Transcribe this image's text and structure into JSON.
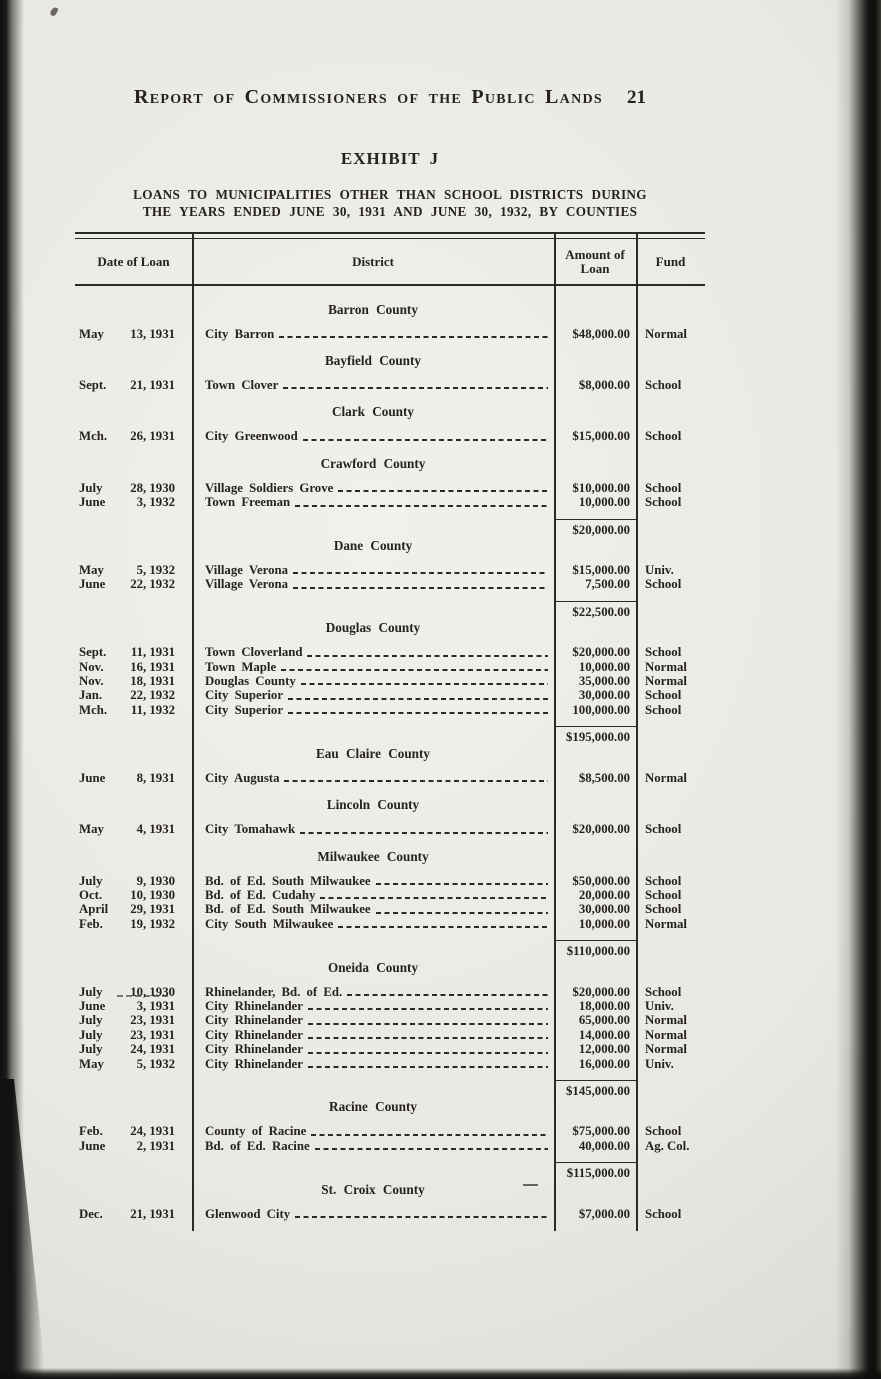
{
  "page": {
    "header_title": "Report of Commissioners of the Public Lands",
    "page_number": "21",
    "exhibit_title": "EXHIBIT J",
    "subtitle_line1": "LOANS TO MUNICIPALITIES OTHER THAN SCHOOL DISTRICTS DURING",
    "subtitle_line2": "THE YEARS ENDED JUNE 30, 1931 AND JUNE 30, 1932, BY COUNTIES"
  },
  "table": {
    "columns": [
      "Date of Loan",
      "District",
      "Amount of Loan",
      "Fund"
    ],
    "sections": [
      {
        "county": "Barron County",
        "rows": [
          {
            "month": "May",
            "day_year": "13, 1931",
            "district": "City Barron",
            "amount": "$48,000.00",
            "fund": "Normal"
          }
        ],
        "subtotal": null
      },
      {
        "county": "Bayfield County",
        "rows": [
          {
            "month": "Sept.",
            "day_year": "21, 1931",
            "district": "Town Clover",
            "amount": "$8,000.00",
            "fund": "School"
          }
        ],
        "subtotal": null
      },
      {
        "county": "Clark County",
        "rows": [
          {
            "month": "Mch.",
            "day_year": "26, 1931",
            "district": "City Greenwood",
            "amount": "$15,000.00",
            "fund": "School"
          }
        ],
        "subtotal": null
      },
      {
        "county": "Crawford County",
        "rows": [
          {
            "month": "July",
            "day_year": "28, 1930",
            "district": "Village Soldiers Grove",
            "amount": "$10,000.00",
            "fund": "School"
          },
          {
            "month": "June",
            "day_year": "3, 1932",
            "district": "Town Freeman",
            "amount": "10,000.00",
            "fund": "School"
          }
        ],
        "subtotal": "$20,000.00"
      },
      {
        "county": "Dane County",
        "rows": [
          {
            "month": "May",
            "day_year": "5, 1932",
            "district": "Village Verona",
            "amount": "$15,000.00",
            "fund": "Univ."
          },
          {
            "month": "June",
            "day_year": "22, 1932",
            "district": "Village Verona",
            "amount": "7,500.00",
            "fund": "School"
          }
        ],
        "subtotal": "$22,500.00"
      },
      {
        "county": "Douglas County",
        "rows": [
          {
            "month": "Sept.",
            "day_year": "11, 1931",
            "district": "Town Cloverland",
            "amount": "$20,000.00",
            "fund": "School"
          },
          {
            "month": "Nov.",
            "day_year": "16, 1931",
            "district": "Town Maple",
            "amount": "10,000.00",
            "fund": "Normal"
          },
          {
            "month": "Nov.",
            "day_year": "18, 1931",
            "district": "Douglas County",
            "amount": "35,000.00",
            "fund": "Normal"
          },
          {
            "month": "Jan.",
            "day_year": "22, 1932",
            "district": "City Superior",
            "amount": "30,000.00",
            "fund": "School"
          },
          {
            "month": "Mch.",
            "day_year": "11, 1932",
            "district": "City Superior",
            "amount": "100,000.00",
            "fund": "School"
          }
        ],
        "subtotal": "$195,000.00"
      },
      {
        "county": "Eau Claire County",
        "rows": [
          {
            "month": "June",
            "day_year": "8, 1931",
            "district": "City Augusta",
            "amount": "$8,500.00",
            "fund": "Normal"
          }
        ],
        "subtotal": null
      },
      {
        "county": "Lincoln County",
        "rows": [
          {
            "month": "May",
            "day_year": "4, 1931",
            "district": "City Tomahawk",
            "amount": "$20,000.00",
            "fund": "School"
          }
        ],
        "subtotal": null
      },
      {
        "county": "Milwaukee County",
        "rows": [
          {
            "month": "July",
            "day_year": "9, 1930",
            "district": "Bd. of Ed. South Milwaukee",
            "amount": "$50,000.00",
            "fund": "School"
          },
          {
            "month": "Oct.",
            "day_year": "10, 1930",
            "district": "Bd. of Ed. Cudahy",
            "amount": "20,000.00",
            "fund": "School"
          },
          {
            "month": "April",
            "day_year": "29, 1931",
            "district": "Bd. of Ed. South Milwaukee",
            "amount": "30,000.00",
            "fund": "School"
          },
          {
            "month": "Feb.",
            "day_year": "19, 1932",
            "district": "City South Milwaukee",
            "amount": "10,000.00",
            "fund": "Normal"
          }
        ],
        "subtotal": "$110,000.00"
      },
      {
        "county": "Oneida County",
        "rows": [
          {
            "month": "July",
            "day_year": "10, 1930",
            "district": "Rhinelander, Bd. of Ed.",
            "amount": "$20,000.00",
            "fund": "School"
          },
          {
            "month": "June",
            "day_year": "3, 1931",
            "district": "City Rhinelander",
            "amount": "18,000.00",
            "fund": "Univ."
          },
          {
            "month": "July",
            "day_year": "23, 1931",
            "district": "City Rhinelander",
            "amount": "65,000.00",
            "fund": "Normal"
          },
          {
            "month": "July",
            "day_year": "23, 1931",
            "district": "City Rhinelander",
            "amount": "14,000.00",
            "fund": "Normal"
          },
          {
            "month": "July",
            "day_year": "24, 1931",
            "district": "City Rhinelander",
            "amount": "12,000.00",
            "fund": "Normal"
          },
          {
            "month": "May",
            "day_year": "5, 1932",
            "district": "City Rhinelander",
            "amount": "16,000.00",
            "fund": "Univ."
          }
        ],
        "subtotal": "$145,000.00"
      },
      {
        "county": "Racine County",
        "rows": [
          {
            "month": "Feb.",
            "day_year": "24, 1931",
            "district": "County of Racine",
            "amount": "$75,000.00",
            "fund": "School"
          },
          {
            "month": "June",
            "day_year": "2, 1931",
            "district": "Bd. of Ed. Racine",
            "amount": "40,000.00",
            "fund": "Ag. Col."
          }
        ],
        "subtotal": "$115,000.00"
      },
      {
        "county": "St. Croix County",
        "rows": [
          {
            "month": "Dec.",
            "day_year": "21, 1931",
            "district": "Glenwood City",
            "amount": "$7,000.00",
            "fund": "School"
          }
        ],
        "subtotal": null
      }
    ]
  },
  "colors": {
    "page_bg": "#e9e8e3",
    "ink": "#26231e",
    "rule": "#2b2a26",
    "edge": "#121210"
  }
}
